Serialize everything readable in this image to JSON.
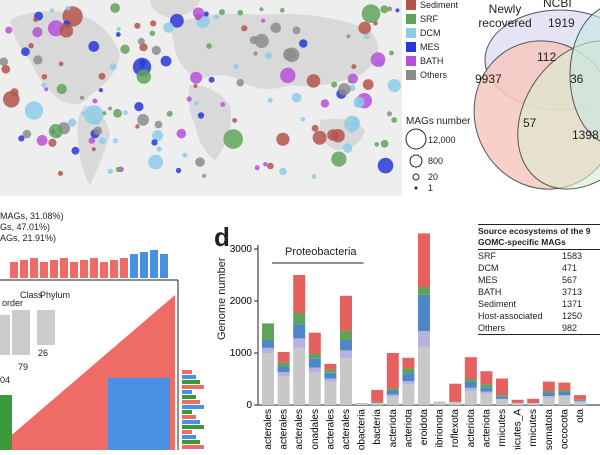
{
  "legend": {
    "categories": [
      {
        "label": "Sediment",
        "color": "#b5544d"
      },
      {
        "label": "SRF",
        "color": "#5fa35a"
      },
      {
        "label": "DCM",
        "color": "#8ccbe8"
      },
      {
        "label": "MES",
        "color": "#2638d8"
      },
      {
        "label": "BATH",
        "color": "#b64fd9"
      },
      {
        "label": "Others",
        "color": "#8c8c8c"
      }
    ],
    "size_title": "MAGs number",
    "size_values": [
      "12,000",
      "800",
      "20",
      "1"
    ]
  },
  "venn": {
    "labels": [
      "Newly recovered",
      "NCBI"
    ],
    "numbers": [
      "1919",
      "112",
      "9937",
      "36",
      "57",
      "1398"
    ]
  },
  "panel_c": {
    "percent_lines": [
      "MAGs, 31.08%)",
      "Gs, 47.01%)",
      "AGs, 21.91%)"
    ],
    "rank_labels": [
      "order",
      "Class",
      "Phylum"
    ],
    "counts": [
      "79",
      "26",
      "04"
    ]
  },
  "panel_d": {
    "letter": "d",
    "ylabel": "Genome number",
    "group_label": "Proteobacteria",
    "table": {
      "title": "Source ecosystems of the 9",
      "subtitle": "GOMC-specific MAGs",
      "rows": [
        {
          "name": "SRF",
          "value": "1583"
        },
        {
          "name": "DCM",
          "value": "471"
        },
        {
          "name": "MES",
          "value": "567"
        },
        {
          "name": "BATH",
          "value": "3713"
        },
        {
          "name": "Sediment",
          "value": "1371"
        },
        {
          "name": "Host-associated",
          "value": "1250"
        },
        {
          "name": "Others",
          "value": "982"
        }
      ]
    }
  },
  "chart_data": {
    "type": "bar",
    "ylabel": "Genome number",
    "ylim": [
      0,
      3000
    ],
    "yticks": [
      "0",
      "1000",
      "2000",
      "3000"
    ],
    "categories": [
      "bacterales",
      "bacterales",
      "obacterales",
      "monadales",
      "bacterales",
      "obacterales",
      "obacteria",
      "bacteria",
      "acteriota",
      "acteriota",
      "eroidota",
      "ibrionota",
      "roflexota",
      "acteriota",
      "acteriota",
      "rmicutes",
      "rmicutes_A",
      "rmicutes",
      "somatota",
      "occocota",
      "ota"
    ],
    "series": [
      {
        "name": "Others",
        "color": "#c8c8c8",
        "values": [
          1000,
          550,
          1100,
          620,
          450,
          900,
          40,
          40,
          160,
          400,
          1120,
          70,
          60,
          270,
          220,
          100,
          40,
          40,
          140,
          160,
          60
        ]
      },
      {
        "name": "DCM",
        "color": "#b8b0e0",
        "values": [
          100,
          80,
          180,
          100,
          60,
          150,
          0,
          0,
          40,
          60,
          300,
          0,
          0,
          60,
          40,
          20,
          0,
          0,
          30,
          30,
          10
        ]
      },
      {
        "name": "MES",
        "color": "#4f86c6",
        "values": [
          150,
          110,
          270,
          180,
          110,
          200,
          0,
          0,
          80,
          150,
          700,
          0,
          0,
          120,
          80,
          40,
          0,
          0,
          60,
          60,
          20
        ]
      },
      {
        "name": "SRF",
        "color": "#5fa35a",
        "values": [
          320,
          80,
          220,
          80,
          60,
          180,
          0,
          20,
          40,
          100,
          150,
          0,
          0,
          50,
          60,
          30,
          0,
          0,
          40,
          30,
          10
        ]
      },
      {
        "name": "BATH",
        "color": "#e66060",
        "values": [
          0,
          200,
          730,
          410,
          110,
          670,
          0,
          230,
          680,
          200,
          1030,
          0,
          350,
          420,
          250,
          320,
          60,
          80,
          180,
          150,
          90
        ]
      }
    ]
  }
}
